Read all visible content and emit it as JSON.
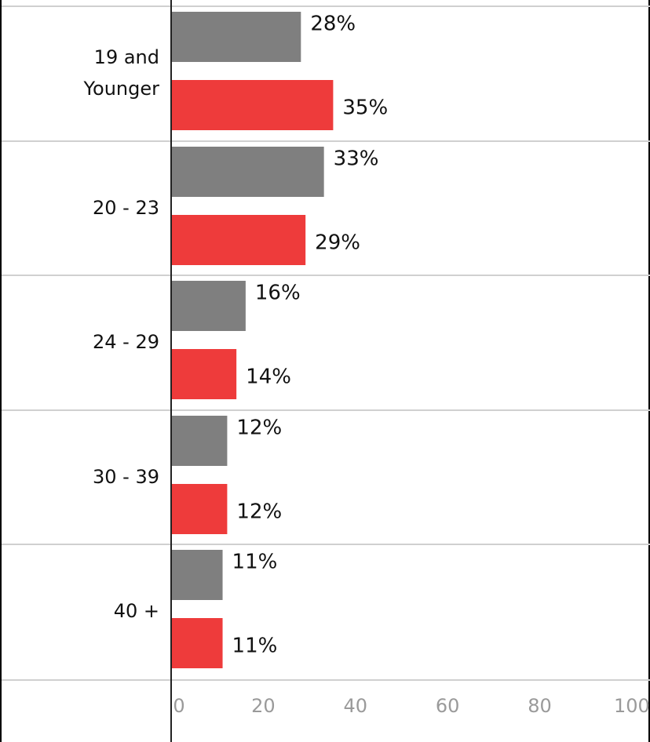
{
  "chart_data": {
    "type": "bar",
    "orientation": "horizontal",
    "categories": [
      [
        "19 and",
        "Younger"
      ],
      [
        "20 - 23"
      ],
      [
        "24 - 29"
      ],
      [
        "30 - 39"
      ],
      [
        "40 +"
      ]
    ],
    "series": [
      {
        "color": "#7f7f7f",
        "values": [
          28,
          33,
          16,
          12,
          11
        ],
        "labels": [
          "28%",
          "33%",
          "16%",
          "12%",
          "11%"
        ]
      },
      {
        "color": "#ee3b3b",
        "values": [
          35,
          29,
          14,
          12,
          11
        ],
        "labels": [
          "35%",
          "29%",
          "14%",
          "12%",
          "11%"
        ]
      }
    ],
    "xlim": [
      0,
      100
    ],
    "xticks": [
      0,
      20,
      40,
      60,
      80,
      100
    ],
    "grid": "horizontal-separators",
    "legend": "none"
  }
}
